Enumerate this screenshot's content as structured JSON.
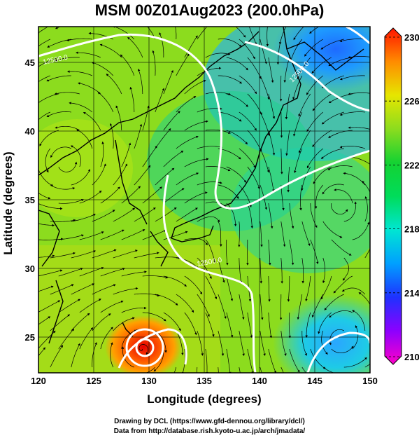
{
  "title": "MSM 00Z01Aug2023 (200.0hPa)",
  "map": {
    "xlabel": "Longitude (degrees)",
    "ylabel": "Latitude  (degrees)",
    "lon_range": [
      120,
      150
    ],
    "lat_range": [
      22.4,
      47.6
    ],
    "x_ticks": [
      120,
      125,
      130,
      135,
      140,
      145,
      150
    ],
    "y_ticks": [
      25,
      30,
      35,
      40,
      45
    ],
    "x_tick_labels": [
      "120",
      "125",
      "130",
      "135",
      "140",
      "145",
      "150"
    ],
    "y_tick_labels": [
      "25",
      "30",
      "35",
      "40",
      "45"
    ],
    "contour_labels": [
      "12500.0",
      "12500.0",
      "12500.0"
    ],
    "streamline_color": "#000000",
    "contour_color": "#ffffff",
    "coastline_color": "#000000",
    "gridlines": true
  },
  "colorbar": {
    "min": 210,
    "max": 230,
    "tick_labels": [
      "230",
      "226",
      "222",
      "218",
      "214",
      "210"
    ],
    "colors": [
      "#ff00c8",
      "#8c00ff",
      "#1e5aff",
      "#00c8ff",
      "#00e6a0",
      "#14d232",
      "#8cdc1e",
      "#e6e600",
      "#ff8c00",
      "#ff1400"
    ]
  },
  "credits": {
    "line1": "Drawing by DCL (https://www.gfd-dennou.org/library/dcl/)",
    "line2": "Data from http://database.rish.kyoto-u.ac.jp/arch/jmadata/"
  }
}
